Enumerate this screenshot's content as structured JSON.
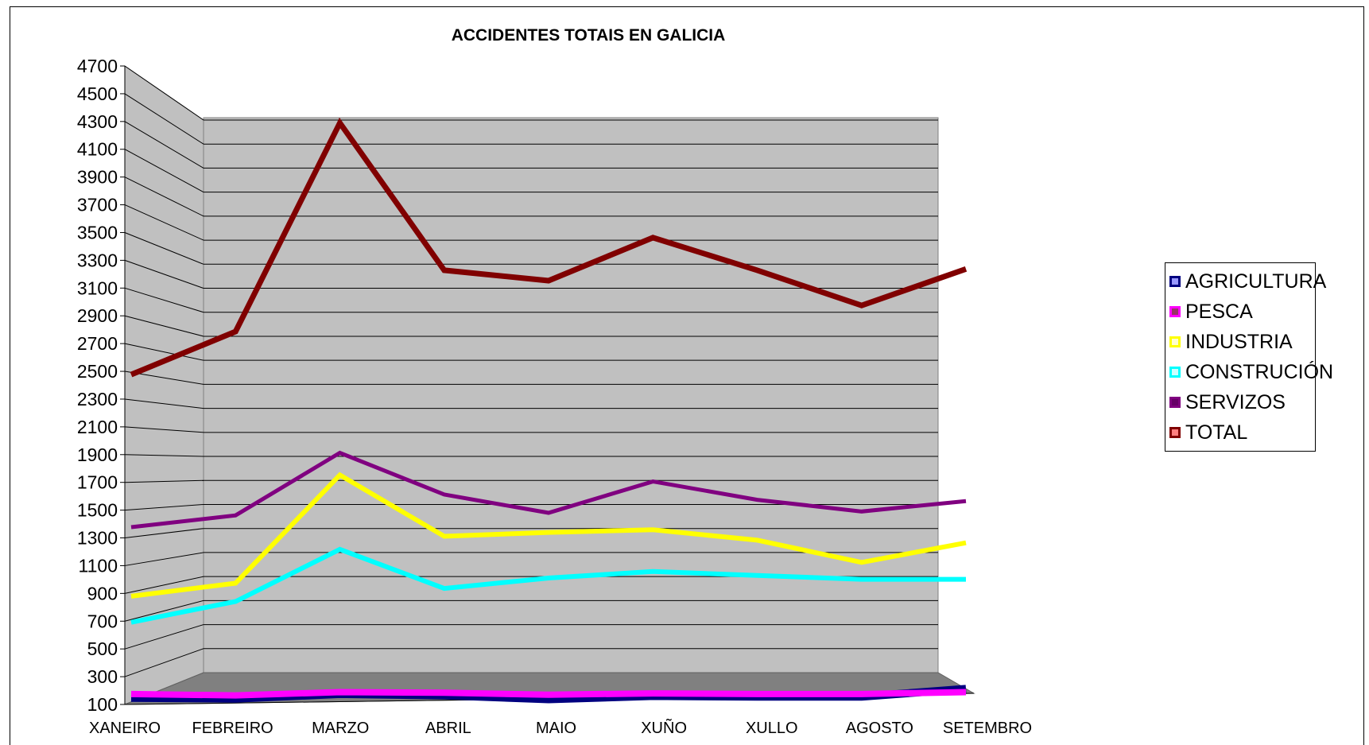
{
  "chart_data": {
    "type": "line",
    "title": "ACCIDENTES TOTAIS EN GALICIA",
    "xlabel": "",
    "ylabel": "",
    "ylim": [
      100,
      4700
    ],
    "ytick_step": 200,
    "yticks": [
      "100",
      "300",
      "500",
      "700",
      "900",
      "1100",
      "1300",
      "1500",
      "1700",
      "1900",
      "2100",
      "2300",
      "2500",
      "2700",
      "2900",
      "3100",
      "3300",
      "3500",
      "3700",
      "3900",
      "4100",
      "4300",
      "4500",
      "4700"
    ],
    "categories": [
      "XANEIRO",
      "FEBREIRO",
      "MARZO",
      "ABRIL",
      "MAIO",
      "XUÑO",
      "XULLO",
      "AGOSTO",
      "SETEMBRO"
    ],
    "grid": true,
    "legend_position": "right",
    "series": [
      {
        "name": "AGRICULTURA",
        "color": "#000080",
        "fill": "#9999ff",
        "values": [
          40,
          35,
          70,
          60,
          30,
          55,
          50,
          50,
          110
        ]
      },
      {
        "name": "PESCA",
        "color": "#ff00ff",
        "fill": "#993366",
        "values": [
          70,
          60,
          85,
          80,
          65,
          75,
          70,
          70,
          85
        ]
      },
      {
        "name": "INDUSTRIA",
        "color": "#ffff00",
        "fill": "#ffffcc",
        "values": [
          820,
          920,
          1750,
          1280,
          1310,
          1330,
          1250,
          1080,
          1230
        ]
      },
      {
        "name": "CONSTRUCIÓN",
        "color": "#00ffff",
        "fill": "#ccffff",
        "values": [
          620,
          780,
          1180,
          880,
          960,
          1010,
          980,
          950,
          950
        ]
      },
      {
        "name": "SERVIZOS",
        "color": "#800080",
        "fill": "#660066",
        "values": [
          1350,
          1440,
          1920,
          1600,
          1460,
          1700,
          1560,
          1470,
          1550
        ]
      },
      {
        "name": "TOTAL",
        "color": "#800000",
        "fill": "#ff8080",
        "values": [
          2520,
          2850,
          4450,
          3320,
          3240,
          3570,
          3320,
          3050,
          3330
        ]
      }
    ]
  }
}
